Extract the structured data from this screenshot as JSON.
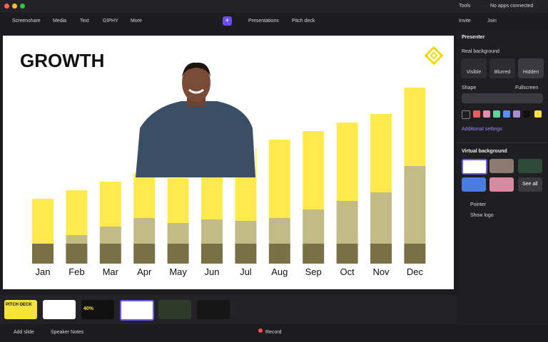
{
  "window": {
    "tools": "Tools",
    "apps": "No apps connected"
  },
  "toolbar": {
    "items": [
      "Screenshare",
      "Media",
      "Text",
      "GIPHY",
      "More"
    ],
    "presentations": "Presentations",
    "deck": "Pitch deck",
    "invite": "Invite",
    "join": "Join"
  },
  "slide": {
    "title": "GROWTH",
    "chart": {
      "type": "bar",
      "stacked": true,
      "categories": [
        "Jan",
        "Feb",
        "Mar",
        "Apr",
        "May",
        "Jun",
        "Jul",
        "Aug",
        "Sep",
        "Oct",
        "Nov",
        "Dec"
      ],
      "series": [
        {
          "color": "#7a7046",
          "values": [
            28,
            28,
            28,
            28,
            28,
            28,
            28,
            28,
            28,
            28,
            28,
            28
          ]
        },
        {
          "color": "#c2bb85",
          "values": [
            0,
            12,
            24,
            36,
            29,
            34,
            32,
            36,
            48,
            60,
            72,
            109
          ]
        },
        {
          "color": "#ffe94d",
          "values": [
            63,
            63,
            63,
            63,
            63,
            60,
            102,
            110,
            110,
            110,
            110,
            110
          ]
        }
      ]
    }
  },
  "panel": {
    "presenter": "Presenter",
    "real_background": "Real background",
    "modes": [
      "Visible",
      "Blurred",
      "Hidden"
    ],
    "shape": "Shape",
    "fullscreen": "Fullscreen",
    "additional": "Additional settings",
    "virtual_background": "Virtual background",
    "see_all": "See all",
    "pointer": "Pointer",
    "show_logo": "Show logo"
  },
  "filmstrip": {
    "thumbs": [
      "PITCH DECK",
      "40%"
    ]
  },
  "bottombar": {
    "add": "Add slide",
    "notes": "Speaker Notes",
    "record": "Record"
  }
}
